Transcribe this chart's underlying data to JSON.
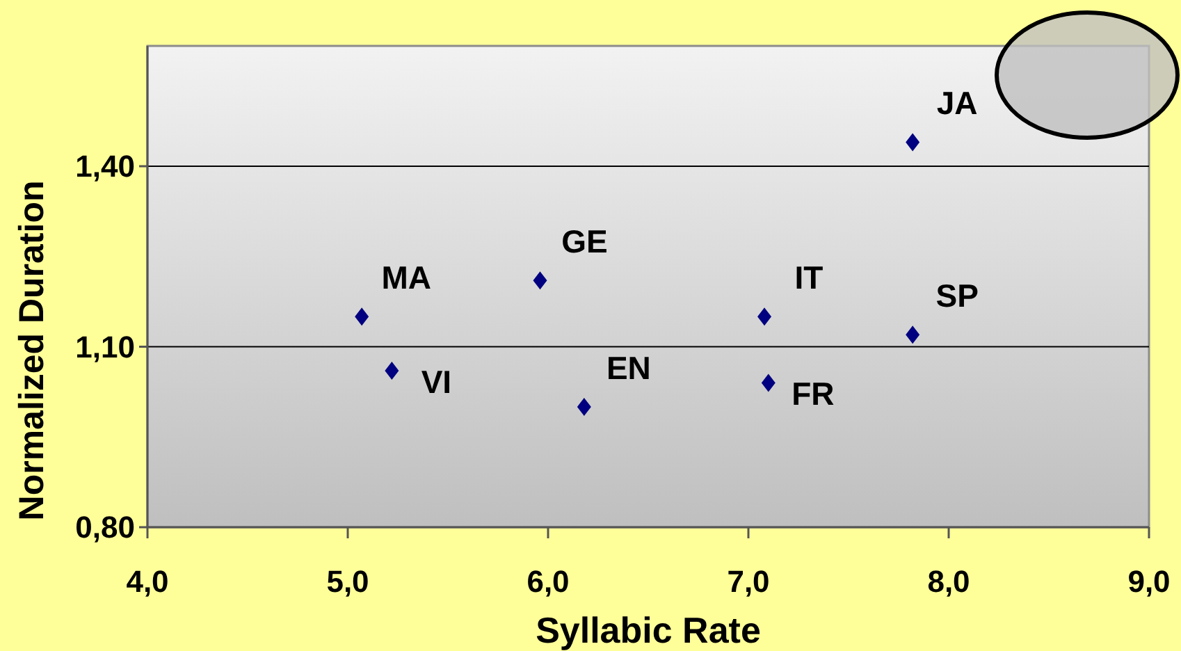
{
  "chart_data": {
    "type": "scatter",
    "xlabel": "Syllabic Rate",
    "ylabel": "Normalized Duration",
    "x": [
      5.07,
      5.22,
      5.96,
      6.18,
      7.08,
      7.1,
      7.82,
      7.82
    ],
    "values": [
      1.15,
      1.06,
      1.21,
      1.0,
      1.15,
      1.04,
      1.12,
      1.44
    ],
    "value_labels": [
      "MA",
      "VI",
      "GE",
      "EN",
      "IT",
      "FR",
      "SP",
      "JA"
    ],
    "color": "#000080",
    "marker": "diamond",
    "grid": "y",
    "xlim": [
      4,
      9
    ],
    "xticks": [
      {
        "value": 4,
        "label": "4,0"
      },
      {
        "value": 5,
        "label": "5,0"
      },
      {
        "value": 6,
        "label": "6,0"
      },
      {
        "value": 7,
        "label": "7,0"
      },
      {
        "value": 8,
        "label": "8,0"
      },
      {
        "value": 9,
        "label": "9,0"
      }
    ],
    "ylim": [
      0.8,
      1.6
    ],
    "yticks": [
      {
        "value": 0.8,
        "label": "0,80"
      },
      {
        "value": 1.1,
        "label": "1,10"
      },
      {
        "value": 1.4,
        "label": "1,40"
      }
    ]
  }
}
